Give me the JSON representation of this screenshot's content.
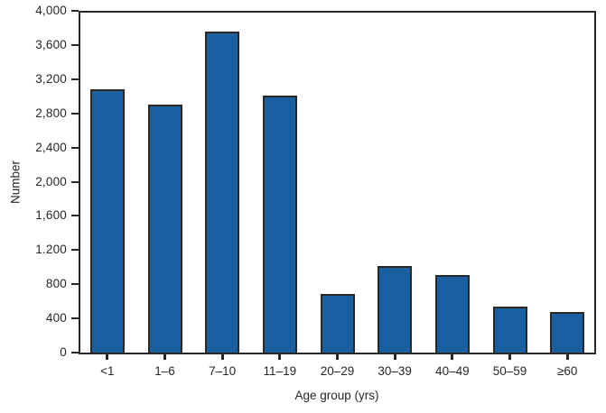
{
  "chart_data": {
    "type": "bar",
    "xlabel": "Age group (yrs)",
    "ylabel": "Number",
    "categories": [
      "<1",
      "1–6",
      "7–10",
      "11–19",
      "20–29",
      "30–39",
      "40–49",
      "50–59",
      "≥60"
    ],
    "values": [
      3100,
      2920,
      3780,
      3020,
      690,
      1020,
      910,
      540,
      480
    ],
    "ylim": [
      0,
      4000
    ],
    "ytick_step": 400,
    "ytick_labels": [
      "4,000",
      "3,600",
      "3,200",
      "2,800",
      "2,400",
      "2,000",
      "1,600",
      "1.200",
      "800",
      "400",
      "0"
    ],
    "grid": false,
    "legend": "none",
    "plot_border": "full-box",
    "bar_fill_color": "#1B5FA0",
    "bar_stroke_color": "#2B2724",
    "axis_color": "#2B2724",
    "text_color": "#26272B"
  }
}
